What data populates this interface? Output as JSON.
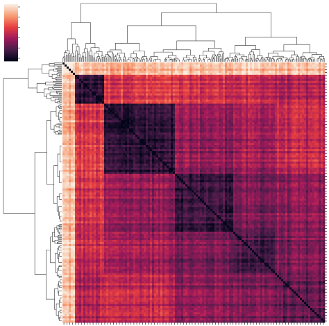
{
  "chart_data": {
    "type": "heatmap",
    "title": "",
    "xlabel": "",
    "ylabel": "",
    "colormap": "rocket",
    "colormap_stops": [
      "#03051a",
      "#4c1d4b",
      "#a11a5b",
      "#e83f3f",
      "#f69c73",
      "#faebdd"
    ],
    "value_range": [
      0,
      1
    ],
    "colorbar": {
      "position": "top-left",
      "tick_labels": []
    },
    "dendrograms": [
      "top",
      "left"
    ],
    "cluster_bounds": [
      0,
      0.05,
      0.16,
      0.43,
      0.65,
      0.81,
      1.0
    ],
    "cluster_values": [
      [
        0.97,
        0.88,
        0.84,
        0.88,
        0.9,
        0.86
      ],
      [
        0.88,
        0.12,
        0.55,
        0.52,
        0.48,
        0.42
      ],
      [
        0.84,
        0.55,
        0.1,
        0.36,
        0.4,
        0.48
      ],
      [
        0.88,
        0.52,
        0.36,
        0.16,
        0.3,
        0.34
      ],
      [
        0.9,
        0.48,
        0.4,
        0.3,
        0.18,
        0.3
      ],
      [
        0.86,
        0.42,
        0.48,
        0.34,
        0.3,
        0.22
      ]
    ],
    "grid": false
  }
}
